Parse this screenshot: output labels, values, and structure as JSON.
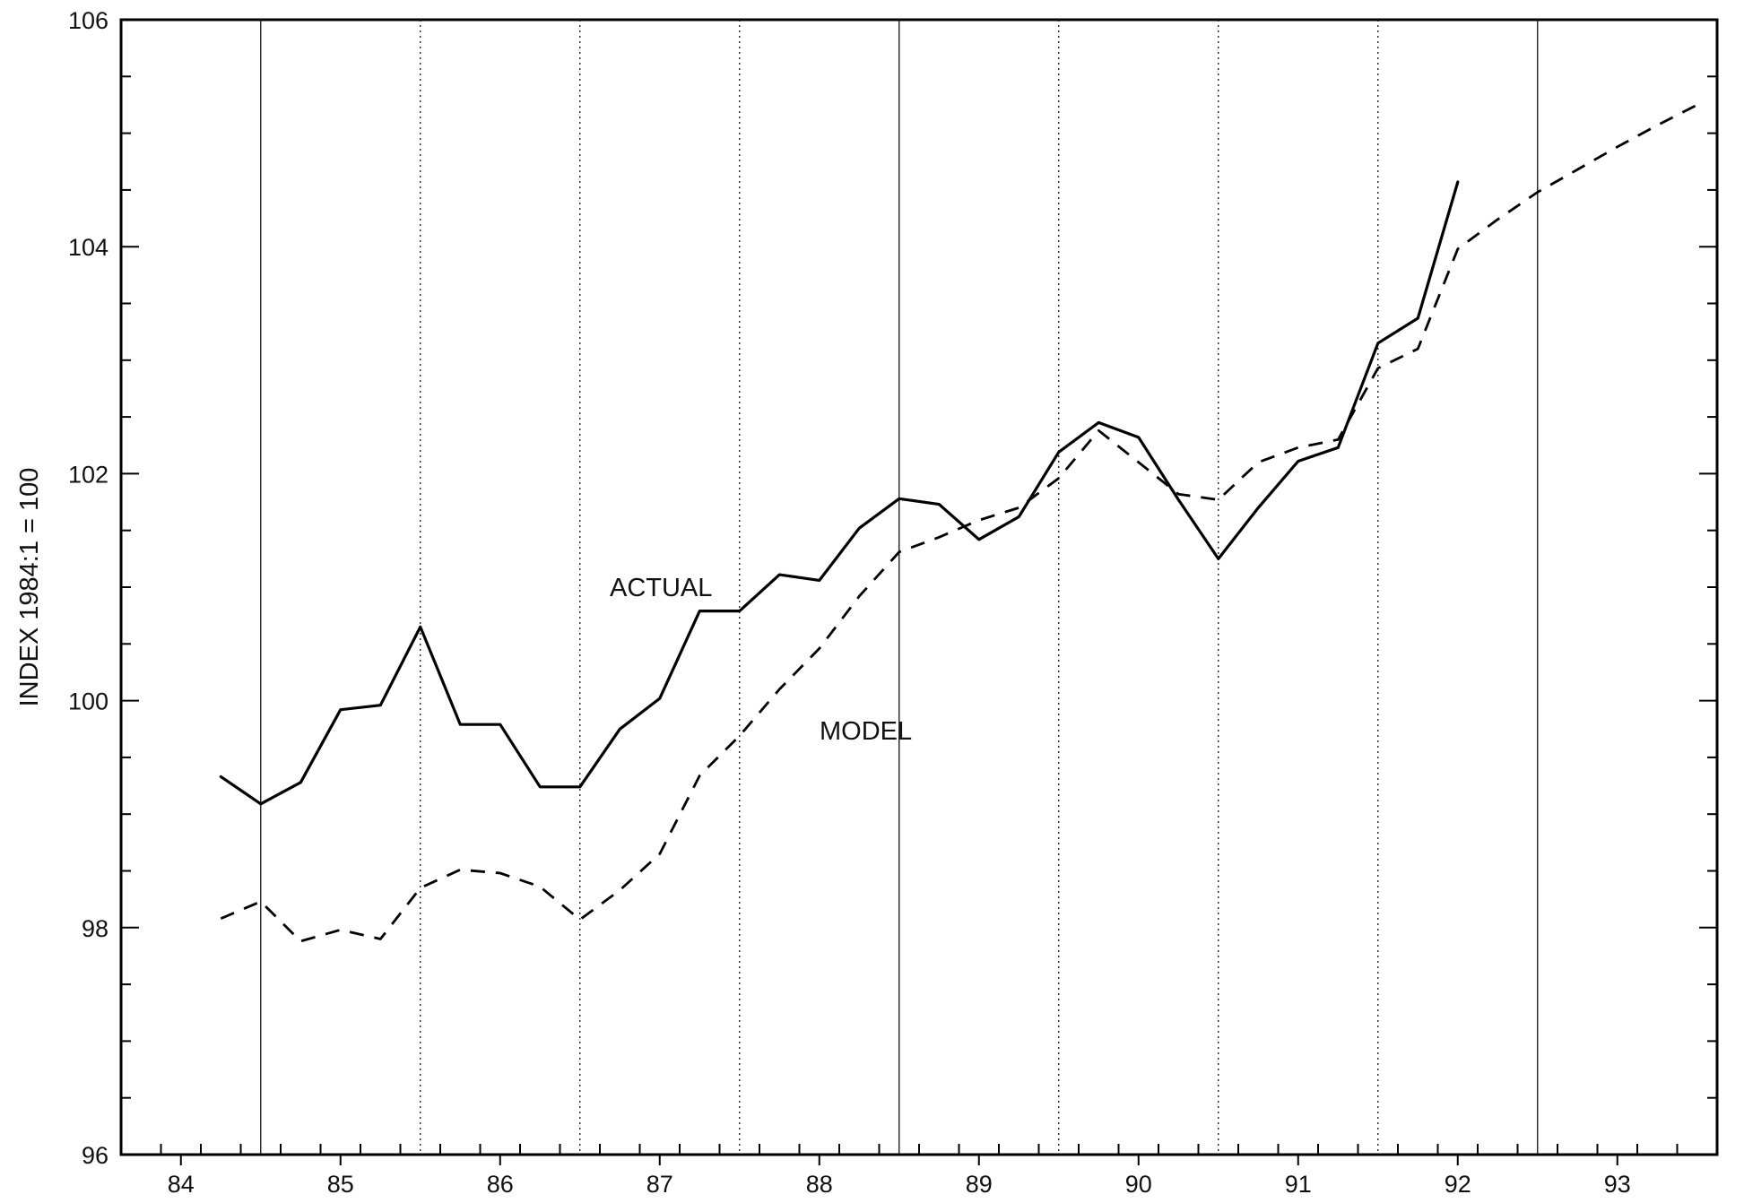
{
  "chart_data": {
    "type": "line",
    "ylabel": "INDEX 1984:1 = 100",
    "xlabel": "",
    "ylim": [
      96,
      106
    ],
    "yticks": [
      96,
      98,
      100,
      102,
      104,
      106
    ],
    "xlim": [
      83.625,
      93.625
    ],
    "xtick_labels": [
      "84",
      "85",
      "86",
      "87",
      "88",
      "89",
      "90",
      "91",
      "92",
      "93"
    ],
    "vlines_solid": [
      84.5,
      88.5,
      92.5
    ],
    "vlines_dotted": [
      85.5,
      86.5,
      87.5,
      89.5,
      90.5,
      91.5
    ],
    "grid": false,
    "series": [
      {
        "name": "ACTUAL",
        "style": "solid",
        "x": [
          84.25,
          84.5,
          84.75,
          85.0,
          85.25,
          85.5,
          85.75,
          86.0,
          86.25,
          86.5,
          86.75,
          87.0,
          87.25,
          87.5,
          87.75,
          88.0,
          88.25,
          88.5,
          88.75,
          89.0,
          89.25,
          89.5,
          89.75,
          90.0,
          90.25,
          90.5,
          90.75,
          91.0,
          91.25,
          91.5,
          91.75,
          92.0
        ],
        "y": [
          99.33,
          99.09,
          99.28,
          99.92,
          99.96,
          100.65,
          99.79,
          99.79,
          99.24,
          99.24,
          99.75,
          100.02,
          100.79,
          100.79,
          101.11,
          101.06,
          101.52,
          101.78,
          101.73,
          101.42,
          101.62,
          102.19,
          102.45,
          102.32,
          101.77,
          101.25,
          101.7,
          102.11,
          102.23,
          103.15,
          103.37,
          104.57
        ]
      },
      {
        "name": "MODEL",
        "style": "dashed",
        "x": [
          84.25,
          84.5,
          84.75,
          85.0,
          85.25,
          85.5,
          85.75,
          86.0,
          86.25,
          86.5,
          86.75,
          87.0,
          87.25,
          87.5,
          87.75,
          88.0,
          88.25,
          88.5,
          88.75,
          89.0,
          89.25,
          89.5,
          89.75,
          90.0,
          90.25,
          90.5,
          90.75,
          91.0,
          91.25,
          91.5,
          91.75,
          92.0,
          92.25,
          92.5,
          92.75,
          93.0,
          93.25,
          93.5
        ],
        "y": [
          98.08,
          98.23,
          97.88,
          97.98,
          97.9,
          98.35,
          98.51,
          98.48,
          98.36,
          98.07,
          98.33,
          98.65,
          99.34,
          99.69,
          100.1,
          100.46,
          100.92,
          101.31,
          101.44,
          101.59,
          101.7,
          101.96,
          102.38,
          102.1,
          101.82,
          101.77,
          102.1,
          102.23,
          102.3,
          102.93,
          103.1,
          103.98,
          104.24,
          104.48,
          104.68,
          104.88,
          105.07,
          105.25
        ]
      }
    ],
    "annotations": [
      {
        "text": "ACTUAL",
        "series": "ACTUAL"
      },
      {
        "text": "MODEL",
        "series": "MODEL"
      }
    ]
  }
}
